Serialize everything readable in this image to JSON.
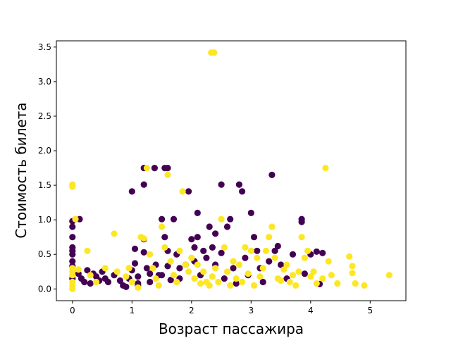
{
  "chart_data": {
    "type": "scatter",
    "title": "",
    "xlabel": "Возраст пассажира",
    "ylabel": "Стоимость билета",
    "xlim": [
      -0.27,
      5.6
    ],
    "ylim": [
      -0.17,
      3.59
    ],
    "xticks": [
      0,
      1,
      2,
      3,
      4,
      5
    ],
    "yticks": [
      0.0,
      0.5,
      1.0,
      1.5,
      2.0,
      2.5,
      3.0,
      3.5
    ],
    "grid": false,
    "legend": "none",
    "colors": {
      "class_0": "#440154",
      "class_1": "#fde725"
    },
    "series": [
      {
        "class": 0,
        "points": [
          [
            0.0,
            0.98
          ],
          [
            0.0,
            0.9
          ],
          [
            0.0,
            0.75
          ],
          [
            0.0,
            0.6
          ],
          [
            0.0,
            0.55
          ],
          [
            0.0,
            0.5
          ],
          [
            0.0,
            0.4
          ],
          [
            0.0,
            0.33
          ],
          [
            0.0,
            0.15
          ],
          [
            0.12,
            1.01
          ],
          [
            0.1,
            0.22
          ],
          [
            0.15,
            0.15
          ],
          [
            0.2,
            0.1
          ],
          [
            0.25,
            0.27
          ],
          [
            0.3,
            0.08
          ],
          [
            0.35,
            0.22
          ],
          [
            0.4,
            0.18
          ],
          [
            0.45,
            0.12
          ],
          [
            0.5,
            0.25
          ],
          [
            0.55,
            0.15
          ],
          [
            0.6,
            0.1
          ],
          [
            0.7,
            0.2
          ],
          [
            0.8,
            0.12
          ],
          [
            0.85,
            0.05
          ],
          [
            0.9,
            0.03
          ],
          [
            0.95,
            0.15
          ],
          [
            1.0,
            1.41
          ],
          [
            1.05,
            0.58
          ],
          [
            1.05,
            0.37
          ],
          [
            1.0,
            0.27
          ],
          [
            1.1,
            0.18
          ],
          [
            1.1,
            0.08
          ],
          [
            1.1,
            0.05
          ],
          [
            1.2,
            1.75
          ],
          [
            1.2,
            1.51
          ],
          [
            1.2,
            0.72
          ],
          [
            1.2,
            0.53
          ],
          [
            1.25,
            0.3
          ],
          [
            1.3,
            0.22
          ],
          [
            1.3,
            0.1
          ],
          [
            1.38,
            1.75
          ],
          [
            1.4,
            0.35
          ],
          [
            1.45,
            0.2
          ],
          [
            1.5,
            1.01
          ],
          [
            1.5,
            0.2
          ],
          [
            1.55,
            1.75
          ],
          [
            1.6,
            1.75
          ],
          [
            1.55,
            0.75
          ],
          [
            1.6,
            0.55
          ],
          [
            1.6,
            0.33
          ],
          [
            1.65,
            0.13
          ],
          [
            1.7,
            1.01
          ],
          [
            1.75,
            0.5
          ],
          [
            1.8,
            0.3
          ],
          [
            1.8,
            0.15
          ],
          [
            1.9,
            0.35
          ],
          [
            1.95,
            1.41
          ],
          [
            2.0,
            0.72
          ],
          [
            2.05,
            0.6
          ],
          [
            2.1,
            1.1
          ],
          [
            2.1,
            0.75
          ],
          [
            2.05,
            0.4
          ],
          [
            2.15,
            0.2
          ],
          [
            2.2,
            0.55
          ],
          [
            2.25,
            0.45
          ],
          [
            2.3,
            0.9
          ],
          [
            2.35,
            0.6
          ],
          [
            2.4,
            0.8
          ],
          [
            2.4,
            0.35
          ],
          [
            2.5,
            1.51
          ],
          [
            2.5,
            0.52
          ],
          [
            2.55,
            0.15
          ],
          [
            2.6,
            0.9
          ],
          [
            2.65,
            1.01
          ],
          [
            2.7,
            0.3
          ],
          [
            2.75,
            0.08
          ],
          [
            2.8,
            1.51
          ],
          [
            2.85,
            1.41
          ],
          [
            2.9,
            0.45
          ],
          [
            2.95,
            0.2
          ],
          [
            3.0,
            1.1
          ],
          [
            3.05,
            0.75
          ],
          [
            3.1,
            0.55
          ],
          [
            3.15,
            0.3
          ],
          [
            3.2,
            0.1
          ],
          [
            3.3,
            0.4
          ],
          [
            3.35,
            1.65
          ],
          [
            3.4,
            0.55
          ],
          [
            3.45,
            0.62
          ],
          [
            3.5,
            0.35
          ],
          [
            3.6,
            0.15
          ],
          [
            3.7,
            0.5
          ],
          [
            3.85,
            1.01
          ],
          [
            3.85,
            0.97
          ],
          [
            3.9,
            0.22
          ],
          [
            4.0,
            0.5
          ],
          [
            4.1,
            0.54
          ],
          [
            4.2,
            0.52
          ],
          [
            4.15,
            0.07
          ]
        ]
      },
      {
        "class": 1,
        "points": [
          [
            2.33,
            3.42
          ],
          [
            2.38,
            3.42
          ],
          [
            0.0,
            1.51
          ],
          [
            0.0,
            1.48
          ],
          [
            0.0,
            0.3
          ],
          [
            0.0,
            0.2
          ],
          [
            0.0,
            0.1
          ],
          [
            0.0,
            0.05
          ],
          [
            0.0,
            0.0
          ],
          [
            0.0,
            0.25
          ],
          [
            0.05,
            1.01
          ],
          [
            0.1,
            0.28
          ],
          [
            0.25,
            0.55
          ],
          [
            0.3,
            0.2
          ],
          [
            0.4,
            0.1
          ],
          [
            0.55,
            0.3
          ],
          [
            0.7,
            0.8
          ],
          [
            0.75,
            0.25
          ],
          [
            0.9,
            0.18
          ],
          [
            0.95,
            0.3
          ],
          [
            1.0,
            0.1
          ],
          [
            1.1,
            0.02
          ],
          [
            1.15,
            0.75
          ],
          [
            1.2,
            0.73
          ],
          [
            1.25,
            1.75
          ],
          [
            1.3,
            0.5
          ],
          [
            1.35,
            0.3
          ],
          [
            1.4,
            0.15
          ],
          [
            1.45,
            0.05
          ],
          [
            1.5,
            0.9
          ],
          [
            1.55,
            0.6
          ],
          [
            1.6,
            1.65
          ],
          [
            1.65,
            0.4
          ],
          [
            1.7,
            0.2
          ],
          [
            1.75,
            0.1
          ],
          [
            1.8,
            0.55
          ],
          [
            1.85,
            1.41
          ],
          [
            1.9,
            0.35
          ],
          [
            1.95,
            0.25
          ],
          [
            2.0,
            0.45
          ],
          [
            2.05,
            0.15
          ],
          [
            2.1,
            0.35
          ],
          [
            2.15,
            0.08
          ],
          [
            2.2,
            0.25
          ],
          [
            2.25,
            0.1
          ],
          [
            2.3,
            0.05
          ],
          [
            2.35,
            0.18
          ],
          [
            2.4,
            0.3
          ],
          [
            2.45,
            0.1
          ],
          [
            2.5,
            1.01
          ],
          [
            2.55,
            0.6
          ],
          [
            2.6,
            0.25
          ],
          [
            2.65,
            0.05
          ],
          [
            2.7,
            0.4
          ],
          [
            2.75,
            0.15
          ],
          [
            2.8,
            0.35
          ],
          [
            2.85,
            0.1
          ],
          [
            2.9,
            0.6
          ],
          [
            2.95,
            0.22
          ],
          [
            3.0,
            0.55
          ],
          [
            3.05,
            0.05
          ],
          [
            3.1,
            0.45
          ],
          [
            3.15,
            0.18
          ],
          [
            3.2,
            0.3
          ],
          [
            3.25,
            0.55
          ],
          [
            3.3,
            0.75
          ],
          [
            3.35,
            0.9
          ],
          [
            3.4,
            0.45
          ],
          [
            3.45,
            0.15
          ],
          [
            3.5,
            0.12
          ],
          [
            3.55,
            0.28
          ],
          [
            3.6,
            0.35
          ],
          [
            3.65,
            0.1
          ],
          [
            3.7,
            0.2
          ],
          [
            3.75,
            0.05
          ],
          [
            3.8,
            0.25
          ],
          [
            3.85,
            0.75
          ],
          [
            3.9,
            0.45
          ],
          [
            3.95,
            0.55
          ],
          [
            4.0,
            0.18
          ],
          [
            4.05,
            0.25
          ],
          [
            4.1,
            0.08
          ],
          [
            4.2,
            0.15
          ],
          [
            4.25,
            1.75
          ],
          [
            4.3,
            0.4
          ],
          [
            4.35,
            0.2
          ],
          [
            4.45,
            0.08
          ],
          [
            4.65,
            0.47
          ],
          [
            4.7,
            0.33
          ],
          [
            4.7,
            0.23
          ],
          [
            4.75,
            0.08
          ],
          [
            4.9,
            0.05
          ],
          [
            5.32,
            0.2
          ]
        ]
      }
    ]
  }
}
